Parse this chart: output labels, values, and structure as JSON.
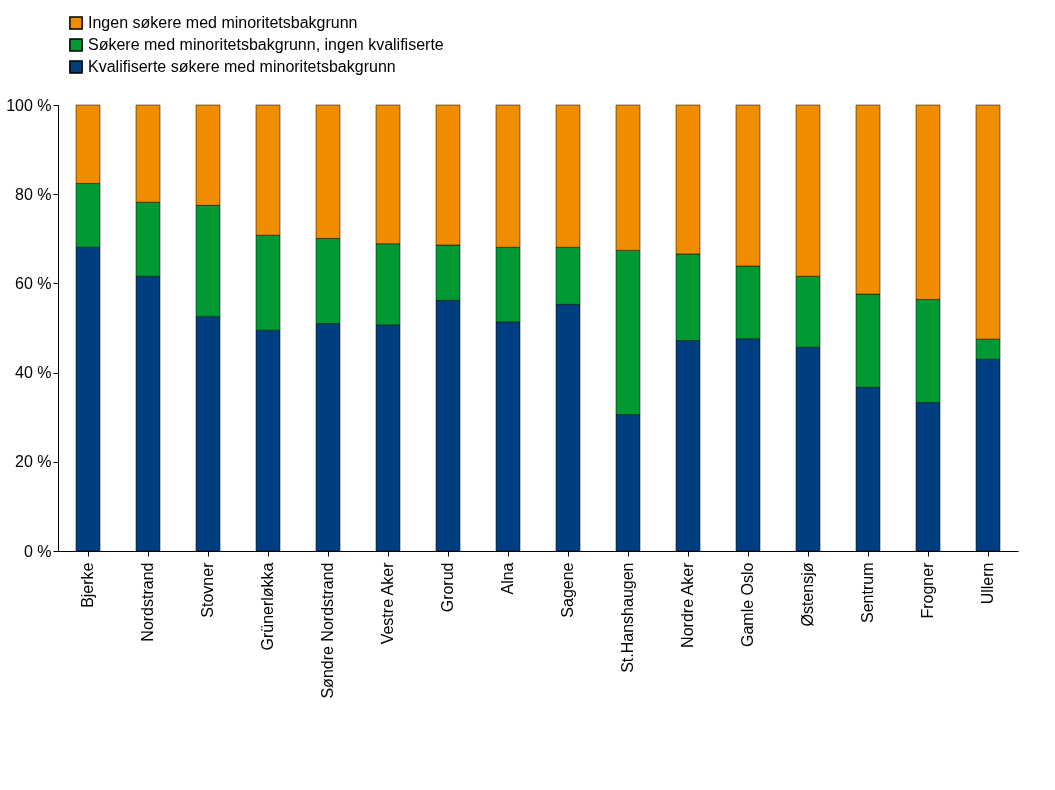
{
  "chart_data": {
    "type": "bar",
    "stacked": true,
    "legend": "top",
    "grid": false,
    "categories": [
      "Bjerke",
      "Nordstrand",
      "Stovner",
      "Grünerløkka",
      "Søndre Nordstrand",
      "Vestre Aker",
      "Grorud",
      "Alna",
      "Sagene",
      "St.Hanshaugen",
      "Nordre Aker",
      "Gamle Oslo",
      "Østensjø",
      "Sentrum",
      "Frogner",
      "Ullern"
    ],
    "ylim": [
      0,
      100
    ],
    "yticks": [
      {
        "value": 0,
        "label": "0 %"
      },
      {
        "value": 20,
        "label": "20 %"
      },
      {
        "value": 40,
        "label": "40 %"
      },
      {
        "value": 60,
        "label": "60 %"
      },
      {
        "value": 80,
        "label": "80 %"
      },
      {
        "value": 100,
        "label": "100 %"
      }
    ],
    "series": [
      {
        "name": "Kvalifiserte søkere med minoritetsbakgrunn",
        "color": "#003f7f",
        "values": [
          68.1,
          61.6,
          52.6,
          49.5,
          51.0,
          50.7,
          56.2,
          51.4,
          55.3,
          30.6,
          47.2,
          47.6,
          45.7,
          36.7,
          33.3,
          43.0
        ]
      },
      {
        "name": "Søkere med minoritetsbakgrunn, ingen kvalifiserte",
        "color": "#009933",
        "values": [
          14.3,
          16.6,
          24.9,
          21.3,
          19.1,
          18.2,
          12.4,
          16.7,
          12.8,
          36.8,
          19.4,
          16.3,
          15.9,
          20.9,
          23.1,
          4.5
        ]
      },
      {
        "name": "Ingen søkere med minoritetsbakgrunn",
        "color": "#f08c00",
        "values": [
          17.6,
          21.8,
          22.5,
          29.2,
          29.9,
          31.1,
          31.4,
          31.9,
          31.9,
          32.6,
          33.4,
          36.1,
          38.4,
          42.4,
          43.6,
          52.5
        ]
      }
    ]
  }
}
